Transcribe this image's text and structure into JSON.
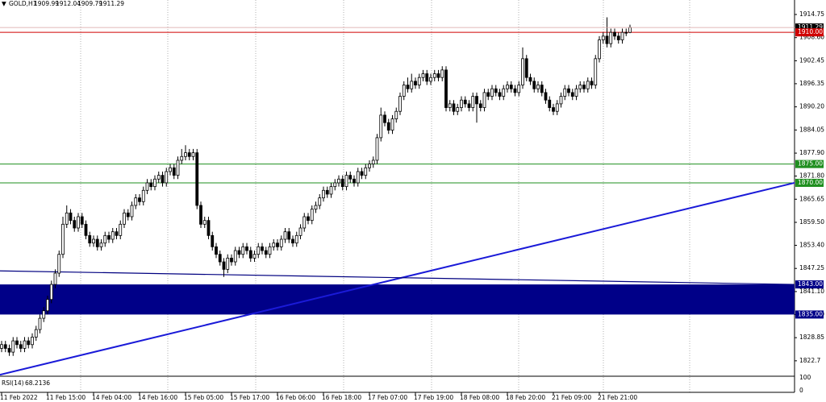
{
  "chart_data": {
    "type": "candlestick",
    "title": "GOLD,H1",
    "ohlc": [
      [
        1826,
        1828,
        1825,
        1827
      ],
      [
        1827,
        1828,
        1825,
        1826
      ],
      [
        1826,
        1827,
        1824,
        1825
      ],
      [
        1825,
        1829,
        1824,
        1828
      ],
      [
        1828,
        1829,
        1826,
        1827
      ],
      [
        1827,
        1828,
        1825,
        1826
      ],
      [
        1826,
        1829,
        1825,
        1828
      ],
      [
        1828,
        1829,
        1826,
        1827
      ],
      [
        1827,
        1830,
        1826,
        1829
      ],
      [
        1829,
        1832,
        1828,
        1831
      ],
      [
        1831,
        1835,
        1830,
        1834
      ],
      [
        1834,
        1837,
        1833,
        1836
      ],
      [
        1836,
        1840,
        1835,
        1839
      ],
      [
        1839,
        1844,
        1838,
        1843
      ],
      [
        1843,
        1847,
        1842,
        1846
      ],
      [
        1846,
        1852,
        1845,
        1851
      ],
      [
        1851,
        1861,
        1850,
        1859
      ],
      [
        1859,
        1864,
        1858,
        1862
      ],
      [
        1862,
        1863,
        1859,
        1860
      ],
      [
        1860,
        1861,
        1857,
        1858
      ],
      [
        1858,
        1862,
        1857,
        1861
      ],
      [
        1861,
        1862,
        1858,
        1859
      ],
      [
        1859,
        1860,
        1855,
        1856
      ],
      [
        1856,
        1857,
        1853,
        1854
      ],
      [
        1854,
        1856,
        1853,
        1855
      ],
      [
        1855,
        1856,
        1852,
        1853
      ],
      [
        1853,
        1855,
        1852,
        1854
      ],
      [
        1854,
        1857,
        1853,
        1856
      ],
      [
        1856,
        1857,
        1854,
        1855
      ],
      [
        1855,
        1858,
        1854,
        1857
      ],
      [
        1857,
        1858,
        1855,
        1856
      ],
      [
        1856,
        1860,
        1855,
        1859
      ],
      [
        1859,
        1863,
        1858,
        1862
      ],
      [
        1862,
        1863,
        1860,
        1861
      ],
      [
        1861,
        1865,
        1860,
        1864
      ],
      [
        1864,
        1867,
        1863,
        1866
      ],
      [
        1866,
        1867,
        1864,
        1865
      ],
      [
        1865,
        1869,
        1864,
        1868
      ],
      [
        1868,
        1871,
        1867,
        1870
      ],
      [
        1870,
        1871,
        1868,
        1869
      ],
      [
        1869,
        1872,
        1868,
        1871
      ],
      [
        1871,
        1873,
        1870,
        1872
      ],
      [
        1872,
        1873,
        1869,
        1870
      ],
      [
        1870,
        1874,
        1869,
        1873
      ],
      [
        1873,
        1875,
        1872,
        1874
      ],
      [
        1874,
        1875,
        1871,
        1872
      ],
      [
        1872,
        1877,
        1871,
        1876
      ],
      [
        1876,
        1879,
        1875,
        1877
      ],
      [
        1877,
        1880,
        1876,
        1878
      ],
      [
        1878,
        1879,
        1876,
        1877
      ],
      [
        1877,
        1879,
        1876,
        1878
      ],
      [
        1878,
        1879,
        1863,
        1864
      ],
      [
        1864,
        1865,
        1858,
        1859
      ],
      [
        1859,
        1861,
        1858,
        1860
      ],
      [
        1860,
        1861,
        1855,
        1856
      ],
      [
        1856,
        1857,
        1852,
        1853
      ],
      [
        1853,
        1854,
        1850,
        1851
      ],
      [
        1851,
        1852,
        1848,
        1849
      ],
      [
        1849,
        1850,
        1845,
        1847
      ],
      [
        1847,
        1851,
        1846,
        1850
      ],
      [
        1850,
        1851,
        1848,
        1849
      ],
      [
        1849,
        1853,
        1848,
        1852
      ],
      [
        1852,
        1853,
        1850,
        1851
      ],
      [
        1851,
        1854,
        1850,
        1853
      ],
      [
        1853,
        1854,
        1851,
        1852
      ],
      [
        1852,
        1853,
        1849,
        1850
      ],
      [
        1850,
        1852,
        1849,
        1851
      ],
      [
        1851,
        1854,
        1850,
        1853
      ],
      [
        1853,
        1854,
        1851,
        1852
      ],
      [
        1852,
        1853,
        1850,
        1851
      ],
      [
        1851,
        1854,
        1850,
        1853
      ],
      [
        1853,
        1855,
        1852,
        1854
      ],
      [
        1854,
        1855,
        1852,
        1853
      ],
      [
        1853,
        1856,
        1852,
        1855
      ],
      [
        1855,
        1858,
        1854,
        1857
      ],
      [
        1857,
        1858,
        1854,
        1855
      ],
      [
        1855,
        1856,
        1853,
        1854
      ],
      [
        1854,
        1857,
        1853,
        1856
      ],
      [
        1856,
        1859,
        1855,
        1858
      ],
      [
        1858,
        1862,
        1857,
        1861
      ],
      [
        1861,
        1862,
        1859,
        1860
      ],
      [
        1860,
        1864,
        1859,
        1863
      ],
      [
        1863,
        1865,
        1862,
        1864
      ],
      [
        1864,
        1867,
        1863,
        1866
      ],
      [
        1866,
        1869,
        1865,
        1868
      ],
      [
        1868,
        1869,
        1866,
        1867
      ],
      [
        1867,
        1870,
        1866,
        1869
      ],
      [
        1869,
        1871,
        1868,
        1870
      ],
      [
        1870,
        1872,
        1869,
        1871
      ],
      [
        1871,
        1872,
        1868,
        1869
      ],
      [
        1869,
        1873,
        1868,
        1872
      ],
      [
        1872,
        1873,
        1870,
        1871
      ],
      [
        1871,
        1872,
        1869,
        1870
      ],
      [
        1870,
        1874,
        1869,
        1873
      ],
      [
        1873,
        1874,
        1871,
        1872
      ],
      [
        1872,
        1875,
        1871,
        1874
      ],
      [
        1874,
        1876,
        1873,
        1875
      ],
      [
        1875,
        1877,
        1874,
        1876
      ],
      [
        1876,
        1883,
        1875,
        1882
      ],
      [
        1882,
        1890,
        1881,
        1888
      ],
      [
        1888,
        1889,
        1885,
        1886
      ],
      [
        1886,
        1887,
        1883,
        1884
      ],
      [
        1884,
        1888,
        1883,
        1887
      ],
      [
        1887,
        1890,
        1886,
        1889
      ],
      [
        1889,
        1894,
        1888,
        1893
      ],
      [
        1893,
        1897,
        1892,
        1896
      ],
      [
        1896,
        1898,
        1894,
        1895
      ],
      [
        1895,
        1899,
        1894,
        1897
      ],
      [
        1897,
        1898,
        1895,
        1896
      ],
      [
        1896,
        1899,
        1895,
        1898
      ],
      [
        1898,
        1900,
        1897,
        1899
      ],
      [
        1899,
        1900,
        1896,
        1897
      ],
      [
        1897,
        1899,
        1896,
        1898
      ],
      [
        1898,
        1900,
        1897,
        1899
      ],
      [
        1899,
        1900,
        1897,
        1898
      ],
      [
        1898,
        1901,
        1897,
        1900
      ],
      [
        1900,
        1901,
        1889,
        1890
      ],
      [
        1890,
        1892,
        1889,
        1891
      ],
      [
        1891,
        1892,
        1888,
        1889
      ],
      [
        1889,
        1891,
        1888,
        1890
      ],
      [
        1890,
        1893,
        1889,
        1892
      ],
      [
        1892,
        1893,
        1890,
        1891
      ],
      [
        1891,
        1892,
        1889,
        1890
      ],
      [
        1890,
        1894,
        1889,
        1893
      ],
      [
        1893,
        1894,
        1886,
        1891
      ],
      [
        1891,
        1892,
        1889,
        1890
      ],
      [
        1890,
        1895,
        1889,
        1894
      ],
      [
        1894,
        1895,
        1892,
        1893
      ],
      [
        1893,
        1896,
        1892,
        1895
      ],
      [
        1895,
        1896,
        1893,
        1894
      ],
      [
        1894,
        1895,
        1892,
        1893
      ],
      [
        1893,
        1896,
        1892,
        1895
      ],
      [
        1895,
        1897,
        1894,
        1896
      ],
      [
        1896,
        1897,
        1894,
        1895
      ],
      [
        1895,
        1896,
        1893,
        1894
      ],
      [
        1894,
        1897,
        1893,
        1896
      ],
      [
        1896,
        1906,
        1895,
        1903
      ],
      [
        1903,
        1904,
        1897,
        1898
      ],
      [
        1898,
        1899,
        1896,
        1897
      ],
      [
        1897,
        1898,
        1894,
        1895
      ],
      [
        1895,
        1897,
        1894,
        1896
      ],
      [
        1896,
        1897,
        1893,
        1894
      ],
      [
        1894,
        1895,
        1891,
        1892
      ],
      [
        1892,
        1893,
        1889,
        1890
      ],
      [
        1890,
        1891,
        1888,
        1889
      ],
      [
        1889,
        1892,
        1888,
        1891
      ],
      [
        1891,
        1894,
        1890,
        1893
      ],
      [
        1893,
        1896,
        1892,
        1895
      ],
      [
        1895,
        1896,
        1893,
        1894
      ],
      [
        1894,
        1895,
        1892,
        1893
      ],
      [
        1893,
        1896,
        1892,
        1895
      ],
      [
        1895,
        1897,
        1894,
        1896
      ],
      [
        1896,
        1897,
        1894,
        1895
      ],
      [
        1895,
        1898,
        1894,
        1897
      ],
      [
        1897,
        1898,
        1895,
        1896
      ],
      [
        1896,
        1904,
        1895,
        1903
      ],
      [
        1903,
        1909,
        1902,
        1908
      ],
      [
        1908,
        1910,
        1907,
        1909
      ],
      [
        1909,
        1914,
        1906,
        1907
      ],
      [
        1907,
        1911,
        1906,
        1910
      ],
      [
        1910,
        1911,
        1908,
        1909
      ],
      [
        1909,
        1910,
        1907,
        1908
      ],
      [
        1908,
        1911,
        1907,
        1910
      ],
      [
        1910,
        1911,
        1909,
        1909.99
      ],
      [
        1909.99,
        1912.04,
        1909.79,
        1911.29
      ]
    ],
    "categories": [
      "11 Feb 2022",
      null,
      null,
      null,
      null,
      null,
      null,
      null,
      null,
      null,
      null,
      null,
      "11 Feb 15:00",
      null,
      null,
      null,
      null,
      null,
      null,
      null,
      null,
      null,
      null,
      null,
      "14 Feb 04:00",
      null,
      null,
      null,
      null,
      null,
      null,
      null,
      null,
      null,
      null,
      null,
      "14 Feb 16:00",
      null,
      null,
      null,
      null,
      null,
      null,
      null,
      null,
      null,
      null,
      null,
      "15 Feb 05:00",
      null,
      null,
      null,
      null,
      null,
      null,
      null,
      null,
      null,
      null,
      null,
      "15 Feb 17:00",
      null,
      null,
      null,
      null,
      null,
      null,
      null,
      null,
      null,
      null,
      null,
      "16 Feb 06:00",
      null,
      null,
      null,
      null,
      null,
      null,
      null,
      null,
      null,
      null,
      null,
      "16 Feb 18:00",
      null,
      null,
      null,
      null,
      null,
      null,
      null,
      null,
      null,
      null,
      null,
      "17 Feb 07:00",
      null,
      null,
      null,
      null,
      null,
      null,
      null,
      null,
      null,
      null,
      null,
      "17 Feb 19:00",
      null,
      null,
      null,
      null,
      null,
      null,
      null,
      null,
      null,
      null,
      null,
      "18 Feb 08:00",
      null,
      null,
      null,
      null,
      null,
      null,
      null,
      null,
      null,
      null,
      null,
      "18 Feb 20:00",
      null,
      null,
      null,
      null,
      null,
      null,
      null,
      null,
      null,
      null,
      null,
      "21 Feb 09:00",
      null,
      null,
      null,
      null,
      null,
      null,
      null,
      null,
      null,
      null,
      null,
      "21 Feb 21:00",
      null,
      null,
      null,
      null,
      null,
      null,
      null,
      null
    ],
    "ylim": [
      1818.6,
      1918.6
    ],
    "yticks": [
      1914.75,
      {
        "value": 1908.6,
        "label": "1908.60"
      },
      1902.45,
      1896.35,
      {
        "value": 1890.2,
        "label": "1890.20"
      },
      1884.05,
      {
        "value": 1877.9,
        "label": "1877.90"
      },
      {
        "value": 1871.8,
        "label": "1871.80"
      },
      1865.65,
      {
        "value": 1859.5,
        "label": "1859.50"
      },
      {
        "value": 1853.4,
        "label": "1853.40"
      },
      1847.25,
      {
        "value": 1841.1,
        "label": "1841.10"
      },
      {
        "value": 1835,
        "label": "1835.00"
      },
      1828.85,
      1822.7
    ],
    "levels": [
      {
        "value": 1910,
        "label": "1910.00",
        "color": "#d00000"
      },
      {
        "value": 1875,
        "label": "1875.00",
        "color": "#1f8f1f"
      },
      {
        "value": 1870,
        "label": "1870.00",
        "color": "#1f8f1f"
      }
    ],
    "zone": {
      "from": {
        "value": 1843,
        "label": "1843.00"
      },
      "to": {
        "value": 1835,
        "label": "1835.00"
      },
      "color": "#000088"
    },
    "trendlines": [
      {
        "y": [
          1819,
          1870
        ],
        "color": "#1a1ad8"
      },
      {
        "y": [
          1846.6,
          1843
        ],
        "color": "#000080"
      }
    ],
    "rsi": {
      "label": "RSI(14)",
      "value": 68.2136,
      "yticks": [
        100,
        0
      ]
    }
  }
}
